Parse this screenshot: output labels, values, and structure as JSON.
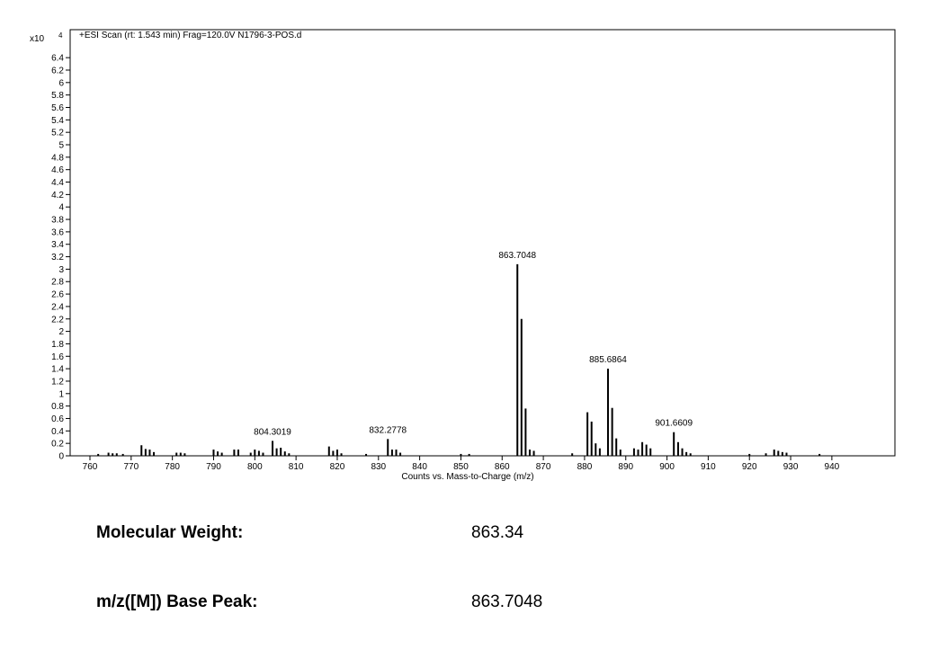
{
  "chart_data": {
    "type": "spectrum",
    "title": "+ESI Scan (rt: 1.543 min) Frag=120.0V N1796-3-POS.d",
    "x_label": "Counts vs. Mass-to-Charge (m/z)",
    "y_scale_label": "x10",
    "y_scale_exponent": "4",
    "color": "#000000",
    "x": [
      762,
      764.5,
      765.5,
      766.5,
      768,
      772.5,
      773.5,
      774.5,
      775.5,
      781,
      782,
      783,
      790,
      791,
      792,
      795,
      796,
      799,
      800,
      801,
      802,
      804.3019,
      805.3,
      806.3,
      807.3,
      808.3,
      818,
      819,
      820,
      821,
      827,
      832.2778,
      833.3,
      834.3,
      835.3,
      850,
      852,
      863.7048,
      864.7,
      865.7,
      866.7,
      867.7,
      877,
      880.7,
      881.7,
      882.7,
      883.7,
      885.6864,
      886.7,
      887.7,
      888.7,
      892,
      893,
      894,
      895,
      896,
      901.6609,
      902.7,
      903.7,
      904.7,
      905.7,
      920,
      924,
      926,
      927,
      928,
      929,
      937
    ],
    "values": [
      0.03,
      0.05,
      0.04,
      0.04,
      0.03,
      0.17,
      0.11,
      0.1,
      0.06,
      0.05,
      0.05,
      0.04,
      0.1,
      0.07,
      0.05,
      0.1,
      0.1,
      0.05,
      0.1,
      0.08,
      0.05,
      0.24,
      0.12,
      0.13,
      0.07,
      0.04,
      0.15,
      0.08,
      0.1,
      0.04,
      0.03,
      0.27,
      0.1,
      0.1,
      0.05,
      0.03,
      0.03,
      3.08,
      2.2,
      0.76,
      0.1,
      0.08,
      0.04,
      0.7,
      0.55,
      0.2,
      0.12,
      1.4,
      0.77,
      0.28,
      0.1,
      0.12,
      0.1,
      0.22,
      0.18,
      0.12,
      0.38,
      0.22,
      0.12,
      0.06,
      0.04,
      0.03,
      0.04,
      0.1,
      0.08,
      0.06,
      0.05,
      0.03
    ],
    "x_labels": [
      null,
      null,
      null,
      null,
      null,
      null,
      null,
      null,
      null,
      null,
      null,
      null,
      null,
      null,
      null,
      null,
      null,
      null,
      null,
      null,
      null,
      "804.3019",
      null,
      null,
      null,
      null,
      null,
      null,
      null,
      null,
      null,
      "832.2778",
      null,
      null,
      null,
      null,
      null,
      "863.7048",
      null,
      null,
      null,
      null,
      null,
      null,
      null,
      null,
      null,
      "885.6864",
      null,
      null,
      null,
      null,
      null,
      null,
      null,
      null,
      "901.6609",
      null,
      null,
      null,
      null,
      null,
      null,
      null,
      null,
      null,
      null,
      null
    ],
    "xlim": [
      755.2,
      955.3
    ],
    "xticks": [
      760,
      770,
      780,
      790,
      800,
      810,
      820,
      830,
      840,
      850,
      860,
      870,
      880,
      890,
      900,
      910,
      920,
      930,
      940
    ],
    "ylim": [
      0,
      6.85
    ],
    "yticks": [
      0,
      0.2,
      0.4,
      0.6,
      0.8,
      1,
      1.2,
      1.4,
      1.6,
      1.8,
      2,
      2.2,
      2.4,
      2.6,
      2.8,
      3,
      3.2,
      3.4,
      3.6,
      3.8,
      4,
      4.2,
      4.4,
      4.6,
      4.8,
      5,
      5.2,
      5.4,
      5.6,
      5.8,
      6,
      6.2,
      6.4
    ]
  },
  "fields": [
    {
      "label": "Molecular Weight:",
      "value": "863.34"
    },
    {
      "label": "m/z([M]) Base Peak:",
      "value": "863.7048"
    }
  ]
}
